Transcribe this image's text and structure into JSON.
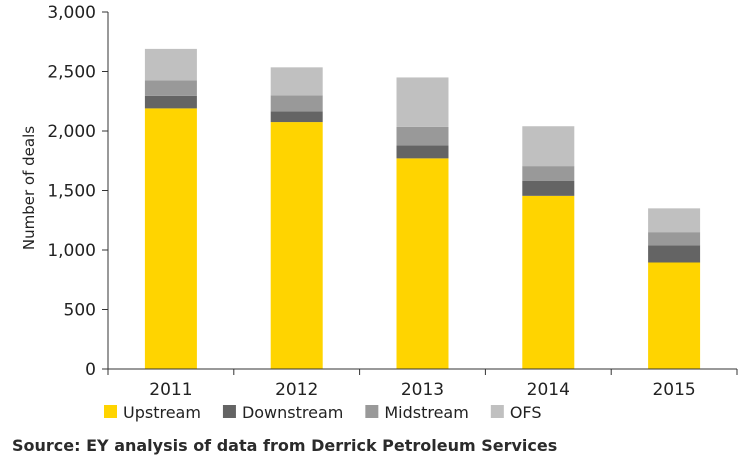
{
  "chart_data": {
    "type": "bar",
    "stacked": true,
    "title": "",
    "xlabel": "",
    "ylabel": "Number of deals",
    "ylim": [
      0,
      3000
    ],
    "yticks": [
      0,
      500,
      1000,
      1500,
      2000,
      2500,
      3000
    ],
    "ytick_labels": [
      "0",
      "500",
      "1,000",
      "1,500",
      "2,000",
      "2,500",
      "3,000"
    ],
    "categories": [
      "2011",
      "2012",
      "2013",
      "2014",
      "2015"
    ],
    "grid": false,
    "legend_position": "bottom",
    "series": [
      {
        "name": "Upstream",
        "color": "#ffd400",
        "values": [
          2190,
          2075,
          1770,
          1455,
          895
        ]
      },
      {
        "name": "Downstream",
        "color": "#646464",
        "values": [
          105,
          90,
          110,
          125,
          145
        ]
      },
      {
        "name": "Midstream",
        "color": "#999999",
        "values": [
          130,
          135,
          155,
          125,
          110
        ]
      },
      {
        "name": "OFS",
        "color": "#c0c0c0",
        "values": [
          265,
          235,
          415,
          335,
          200
        ]
      }
    ]
  },
  "source_text": "Source: EY analysis of data from Derrick Petroleum Services"
}
